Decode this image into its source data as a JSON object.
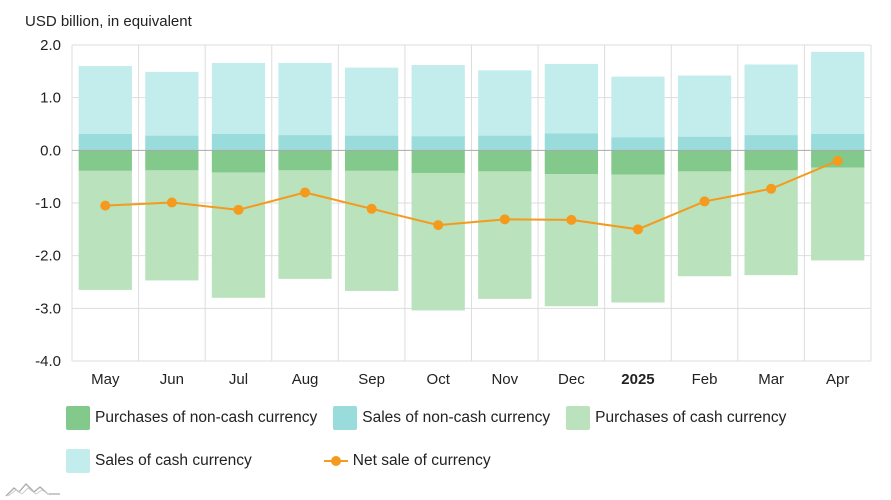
{
  "chart_data": {
    "type": "bar",
    "ylabel": "USD billion, in equivalent",
    "ylim": [
      -4.0,
      2.0
    ],
    "y_ticks": [
      "2.0",
      "1.0",
      "0.0",
      "-1.0",
      "-2.0",
      "-3.0",
      "-4.0"
    ],
    "categories": [
      "May",
      "Jun",
      "Jul",
      "Aug",
      "Sep",
      "Oct",
      "Nov",
      "Dec",
      "2025",
      "Feb",
      "Mar",
      "Apr"
    ],
    "bold_categories": [
      "2025"
    ],
    "series": [
      {
        "name": "Purchases of non-cash currency",
        "kind": "stacked-negative",
        "color": "#82c98b",
        "values": [
          -0.39,
          -0.38,
          -0.42,
          -0.38,
          -0.39,
          -0.43,
          -0.4,
          -0.45,
          -0.46,
          -0.4,
          -0.38,
          -0.33
        ]
      },
      {
        "name": "Sales of non-cash currency",
        "kind": "stacked-positive",
        "color": "#9adcdc",
        "values": [
          0.31,
          0.28,
          0.31,
          0.29,
          0.28,
          0.27,
          0.28,
          0.32,
          0.25,
          0.26,
          0.29,
          0.31
        ]
      },
      {
        "name": "Purchases of cash currency",
        "kind": "stacked-negative",
        "color": "#b9e2bd",
        "values": [
          -2.26,
          -2.09,
          -2.38,
          -2.06,
          -2.28,
          -2.61,
          -2.42,
          -2.51,
          -2.43,
          -1.99,
          -1.99,
          -1.76
        ]
      },
      {
        "name": "Sales of cash currency",
        "kind": "stacked-positive",
        "color": "#c3ecec",
        "values": [
          1.29,
          1.21,
          1.35,
          1.37,
          1.29,
          1.35,
          1.24,
          1.32,
          1.15,
          1.16,
          1.34,
          1.56
        ]
      },
      {
        "name": "Net sale of currency",
        "kind": "line",
        "color": "#f59a1c",
        "values": [
          -1.05,
          -0.99,
          -1.13,
          -0.8,
          -1.11,
          -1.42,
          -1.31,
          -1.32,
          -1.5,
          -0.97,
          -0.73,
          -0.2
        ]
      }
    ],
    "grid": true
  },
  "legend": {
    "items": [
      {
        "label": "Purchases of non-cash currency",
        "color": "#82c98b",
        "icon": "square-swatch"
      },
      {
        "label": "Sales of non-cash currency",
        "color": "#9adcdc",
        "icon": "square-swatch"
      },
      {
        "label": "Purchases of cash currency",
        "color": "#b9e2bd",
        "icon": "square-swatch"
      },
      {
        "label": "Sales of cash currency",
        "color": "#c3ecec",
        "icon": "square-swatch"
      },
      {
        "label": "Net sale of currency",
        "color": "#f59a1c",
        "icon": "line-dot-swatch"
      }
    ]
  },
  "colors": {
    "grid": "#dddddd",
    "zero_line": "#aaaaaa",
    "text": "#222222",
    "logo": "#999999"
  },
  "logo": {
    "icon": "mountain-logo-icon"
  }
}
